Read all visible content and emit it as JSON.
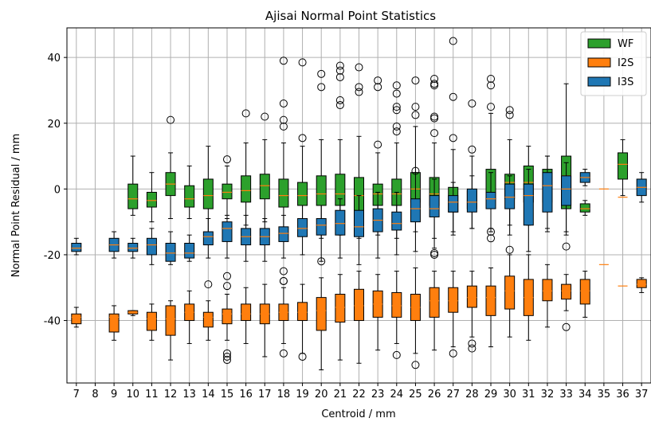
{
  "chart_data": {
    "type": "box",
    "title": "Ajisai Normal Point Statistics",
    "xlabel": "Centroid / mm",
    "ylabel": "Normal Point Residual / mm",
    "xlim": [
      6.5,
      37.5
    ],
    "ylim": [
      -59,
      49
    ],
    "xticks": [
      7,
      8,
      9,
      10,
      11,
      12,
      13,
      14,
      15,
      16,
      17,
      18,
      19,
      20,
      21,
      22,
      23,
      24,
      25,
      26,
      27,
      28,
      29,
      30,
      31,
      32,
      33,
      34,
      35,
      36,
      37
    ],
    "yticks": [
      40,
      20,
      0,
      -20,
      -40
    ],
    "grid": true,
    "legend": {
      "position": "top-right",
      "entries": [
        "WF",
        "I2S",
        "I3S"
      ]
    },
    "series": [
      {
        "name": "WF",
        "color": "#2ca02c",
        "boxes": [
          {
            "x": 10,
            "q1": -6,
            "median": -3,
            "q3": 1.5,
            "whislo": -8,
            "whishi": 10,
            "fliers": []
          },
          {
            "x": 11,
            "q1": -5.5,
            "median": -3.5,
            "q3": -1,
            "whislo": -10,
            "whishi": 5,
            "fliers": []
          },
          {
            "x": 12,
            "q1": -2,
            "median": 1.5,
            "q3": 5,
            "whislo": -9,
            "whishi": 11,
            "fliers": [
              21
            ]
          },
          {
            "x": 13,
            "q1": -5.5,
            "median": -3,
            "q3": 1,
            "whislo": -9,
            "whishi": 7,
            "fliers": []
          },
          {
            "x": 14,
            "q1": -6,
            "median": -2,
            "q3": 3,
            "whislo": -14,
            "whishi": 13,
            "fliers": []
          },
          {
            "x": 15,
            "q1": -3,
            "median": -1,
            "q3": 1.5,
            "whislo": -9,
            "whishi": 7,
            "fliers": [
              9
            ]
          },
          {
            "x": 16,
            "q1": -4,
            "median": -0.5,
            "q3": 4,
            "whislo": -11,
            "whishi": 14,
            "fliers": [
              23
            ]
          },
          {
            "x": 17,
            "q1": -3,
            "median": 1,
            "q3": 4.5,
            "whislo": -10,
            "whishi": 15,
            "fliers": [
              22
            ]
          },
          {
            "x": 18,
            "q1": -5.5,
            "median": -2,
            "q3": 3,
            "whislo": -12,
            "whishi": 14,
            "fliers": [
              39,
              26,
              21,
              19
            ]
          },
          {
            "x": 19,
            "q1": -5,
            "median": -2,
            "q3": 2,
            "whislo": -13,
            "whishi": 13,
            "fliers": [
              38.5,
              15.5
            ]
          },
          {
            "x": 20,
            "q1": -5,
            "median": -1.5,
            "q3": 4,
            "whislo": -15,
            "whishi": 15,
            "fliers": [
              35,
              31
            ]
          },
          {
            "x": 21,
            "q1": -5,
            "median": -1.5,
            "q3": 4.5,
            "whislo": -14,
            "whishi": 15,
            "fliers": [
              37.5,
              36,
              34,
              27,
              25.5
            ]
          },
          {
            "x": 22,
            "q1": -7,
            "median": -2,
            "q3": 3.5,
            "whislo": -15,
            "whishi": 16,
            "fliers": [
              37,
              31,
              29.5
            ]
          },
          {
            "x": 23,
            "q1": -5,
            "median": -1.5,
            "q3": 1.5,
            "whislo": -14,
            "whishi": 11,
            "fliers": [
              33,
              31,
              13.5
            ]
          },
          {
            "x": 24,
            "q1": -5,
            "median": -1.5,
            "q3": 3,
            "whislo": -15,
            "whishi": 14,
            "fliers": [
              31.5,
              29,
              25,
              24,
              19,
              17.5
            ]
          },
          {
            "x": 25,
            "q1": -4,
            "median": 0,
            "q3": 5,
            "whislo": -13,
            "whishi": 19,
            "fliers": [
              33,
              25,
              22.5,
              5.5
            ]
          },
          {
            "x": 26,
            "q1": -5,
            "median": -1.5,
            "q3": 3.5,
            "whislo": -15,
            "whishi": 14,
            "fliers": [
              33.5,
              32,
              31.5,
              22,
              21.5,
              17
            ]
          },
          {
            "x": 27,
            "q1": -7,
            "median": -3,
            "q3": 0.5,
            "whislo": -14,
            "whishi": 12,
            "fliers": [
              45,
              28,
              15.5
            ]
          },
          {
            "x": 28,
            "q1": -6,
            "median": -3,
            "q3": -0.5,
            "whislo": -12,
            "whishi": 10,
            "fliers": [
              26,
              12
            ]
          },
          {
            "x": 29,
            "q1": -5,
            "median": -2,
            "q3": 6,
            "whislo": -13,
            "whishi": 23,
            "fliers": [
              33.5,
              31.5,
              25
            ]
          },
          {
            "x": 30,
            "q1": -3,
            "median": 2,
            "q3": 4.5,
            "whislo": -11,
            "whishi": 15,
            "fliers": [
              24,
              22.5
            ]
          },
          {
            "x": 31,
            "q1": -4,
            "median": 2,
            "q3": 7,
            "whislo": -11,
            "whishi": 13,
            "fliers": []
          },
          {
            "x": 32,
            "q1": -4,
            "median": 2,
            "q3": 6,
            "whislo": -12,
            "whishi": 10,
            "fliers": []
          },
          {
            "x": 33,
            "q1": -6,
            "median": 4,
            "q3": 10,
            "whislo": -14,
            "whishi": 32,
            "fliers": []
          },
          {
            "x": 34,
            "q1": -7,
            "median": -6,
            "q3": -4.5,
            "whislo": -8,
            "whishi": -3.5,
            "fliers": []
          },
          {
            "x": 36,
            "q1": 3,
            "median": 7.5,
            "q3": 11,
            "whislo": -2,
            "whishi": 15,
            "fliers": []
          }
        ]
      },
      {
        "name": "I2S",
        "color": "#ff7f0e",
        "boxes": [
          {
            "x": 7,
            "q1": -41,
            "median": -39,
            "q3": -38,
            "whislo": -42,
            "whishi": -36,
            "fliers": []
          },
          {
            "x": 9,
            "q1": -43.5,
            "median": -39,
            "q3": -38,
            "whislo": -46,
            "whishi": -35.5,
            "fliers": []
          },
          {
            "x": 10,
            "q1": -38,
            "median": -37.5,
            "q3": -37,
            "whislo": -38.5,
            "whishi": -37,
            "fliers": []
          },
          {
            "x": 11,
            "q1": -43,
            "median": -39.5,
            "q3": -37.5,
            "whislo": -46,
            "whishi": -35,
            "fliers": []
          },
          {
            "x": 12,
            "q1": -44.5,
            "median": -39.5,
            "q3": -35.5,
            "whislo": -52,
            "whishi": -34,
            "fliers": []
          },
          {
            "x": 13,
            "q1": -40,
            "median": -37.5,
            "q3": -35,
            "whislo": -47,
            "whishi": -31,
            "fliers": []
          },
          {
            "x": 14,
            "q1": -42,
            "median": -39,
            "q3": -37.5,
            "whislo": -46,
            "whishi": -34,
            "fliers": [
              -29
            ]
          },
          {
            "x": 15,
            "q1": -41,
            "median": -38,
            "q3": -36.5,
            "whislo": -46,
            "whishi": -32,
            "fliers": [
              -26.5,
              -29.5,
              -50,
              -51,
              -52
            ]
          },
          {
            "x": 16,
            "q1": -40,
            "median": -38,
            "q3": -35,
            "whislo": -47,
            "whishi": -30,
            "fliers": []
          },
          {
            "x": 17,
            "q1": -41,
            "median": -38,
            "q3": -35,
            "whislo": -51,
            "whishi": -29,
            "fliers": []
          },
          {
            "x": 18,
            "q1": -40,
            "median": -37.5,
            "q3": -35,
            "whislo": -47,
            "whishi": -30,
            "fliers": [
              -25,
              -28,
              -28,
              -50
            ]
          },
          {
            "x": 19,
            "q1": -40,
            "median": -37.5,
            "q3": -34.5,
            "whislo": -50,
            "whishi": -29,
            "fliers": [
              -51
            ]
          },
          {
            "x": 20,
            "q1": -43,
            "median": -37,
            "q3": -33,
            "whislo": -55,
            "whishi": -27,
            "fliers": []
          },
          {
            "x": 21,
            "q1": -40.5,
            "median": -36,
            "q3": -32,
            "whislo": -52,
            "whishi": -26,
            "fliers": []
          },
          {
            "x": 22,
            "q1": -40,
            "median": -35.5,
            "q3": -30.5,
            "whislo": -53,
            "whishi": -25,
            "fliers": []
          },
          {
            "x": 23,
            "q1": -39,
            "median": -35,
            "q3": -31,
            "whislo": -49,
            "whishi": -26,
            "fliers": []
          },
          {
            "x": 24,
            "q1": -39,
            "median": -35.5,
            "q3": -31.5,
            "whislo": -47,
            "whishi": -25,
            "fliers": [
              -50.5
            ]
          },
          {
            "x": 25,
            "q1": -40,
            "median": -36,
            "q3": -32,
            "whislo": -50,
            "whishi": -24,
            "fliers": [
              -53.5
            ]
          },
          {
            "x": 26,
            "q1": -39,
            "median": -34,
            "q3": -30,
            "whislo": -49,
            "whishi": -25,
            "fliers": []
          },
          {
            "x": 27,
            "q1": -37.5,
            "median": -34,
            "q3": -30,
            "whislo": -48,
            "whishi": -25,
            "fliers": [
              -50
            ]
          },
          {
            "x": 28,
            "q1": -36,
            "median": -33,
            "q3": -29.5,
            "whislo": -45,
            "whishi": -25,
            "fliers": [
              -47,
              -48.5
            ]
          },
          {
            "x": 29,
            "q1": -38.5,
            "median": -33,
            "q3": -29.5,
            "whislo": -48,
            "whishi": -24,
            "fliers": []
          },
          {
            "x": 30,
            "q1": -36.5,
            "median": -31,
            "q3": -26.5,
            "whislo": -45,
            "whishi": -20,
            "fliers": []
          },
          {
            "x": 31,
            "q1": -38.5,
            "median": -33,
            "q3": -27.5,
            "whislo": -46,
            "whishi": -20,
            "fliers": []
          },
          {
            "x": 32,
            "q1": -34,
            "median": -31,
            "q3": -27.5,
            "whislo": -42,
            "whishi": -23,
            "fliers": []
          },
          {
            "x": 33,
            "q1": -33.5,
            "median": -31,
            "q3": -29,
            "whislo": -37,
            "whishi": -26,
            "fliers": [
              -42
            ]
          },
          {
            "x": 34,
            "q1": -35,
            "median": -31,
            "q3": -27.5,
            "whislo": -39,
            "whishi": -25,
            "fliers": []
          },
          {
            "x": 35,
            "q1": -23,
            "median": -23,
            "q3": -23,
            "whislo": -23,
            "whishi": -23,
            "fliers": []
          },
          {
            "x": 36,
            "q1": -29.5,
            "median": -29.5,
            "q3": -29.5,
            "whislo": -29.5,
            "whishi": -29.5,
            "fliers": []
          },
          {
            "x": 37,
            "q1": -30,
            "median": -29,
            "q3": -27.5,
            "whislo": -31.5,
            "whishi": -27,
            "fliers": []
          }
        ]
      },
      {
        "name": "I3S",
        "color": "#1f77b4",
        "boxes": [
          {
            "x": 7,
            "q1": -19,
            "median": -18,
            "q3": -16.5,
            "whislo": -20,
            "whishi": -15,
            "fliers": []
          },
          {
            "x": 9,
            "q1": -19,
            "median": -17,
            "q3": -15,
            "whislo": -21,
            "whishi": -13,
            "fliers": []
          },
          {
            "x": 10,
            "q1": -19,
            "median": -18,
            "q3": -16.5,
            "whislo": -21,
            "whishi": -15,
            "fliers": []
          },
          {
            "x": 11,
            "q1": -20,
            "median": -17,
            "q3": -15,
            "whislo": -23,
            "whishi": -12,
            "fliers": []
          },
          {
            "x": 12,
            "q1": -22,
            "median": -19.5,
            "q3": -16.5,
            "whislo": -23,
            "whishi": -13,
            "fliers": []
          },
          {
            "x": 13,
            "q1": -21,
            "median": -19.5,
            "q3": -16.5,
            "whislo": -22,
            "whishi": -14,
            "fliers": []
          },
          {
            "x": 14,
            "q1": -17,
            "median": -14.5,
            "q3": -13,
            "whislo": -21,
            "whishi": -9,
            "fliers": []
          },
          {
            "x": 15,
            "q1": -16,
            "median": -12,
            "q3": -10,
            "whislo": -21,
            "whishi": -8,
            "fliers": []
          },
          {
            "x": 16,
            "q1": -17,
            "median": -14.5,
            "q3": -12,
            "whislo": -22,
            "whishi": -8,
            "fliers": []
          },
          {
            "x": 17,
            "q1": -17,
            "median": -14.5,
            "q3": -12,
            "whislo": -22,
            "whishi": -9,
            "fliers": []
          },
          {
            "x": 18,
            "q1": -16,
            "median": -13.5,
            "q3": -11.5,
            "whislo": -21,
            "whishi": -8,
            "fliers": []
          },
          {
            "x": 19,
            "q1": -14.5,
            "median": -12,
            "q3": -9,
            "whislo": -20,
            "whishi": -5,
            "fliers": []
          },
          {
            "x": 20,
            "q1": -14,
            "median": -11,
            "q3": -9,
            "whislo": -22,
            "whishi": -5,
            "fliers": [
              -22
            ]
          },
          {
            "x": 21,
            "q1": -14,
            "median": -10.5,
            "q3": -6.5,
            "whislo": -21,
            "whishi": -3,
            "fliers": []
          },
          {
            "x": 22,
            "q1": -14.5,
            "median": -11.5,
            "q3": -6.5,
            "whislo": -23,
            "whishi": -2,
            "fliers": []
          },
          {
            "x": 23,
            "q1": -13,
            "median": -9.5,
            "q3": -6,
            "whislo": -21,
            "whishi": -1,
            "fliers": []
          },
          {
            "x": 24,
            "q1": -12.5,
            "median": -10.5,
            "q3": -7,
            "whislo": -20,
            "whishi": -1,
            "fliers": []
          },
          {
            "x": 25,
            "q1": -10,
            "median": -6,
            "q3": -3,
            "whislo": -19,
            "whishi": 5,
            "fliers": []
          },
          {
            "x": 26,
            "q1": -8.5,
            "median": -6,
            "q3": -2,
            "whislo": -18,
            "whishi": 3,
            "fliers": [
              -19.5,
              -20
            ]
          },
          {
            "x": 27,
            "q1": -7,
            "median": -4,
            "q3": -2,
            "whislo": -13,
            "whishi": 2,
            "fliers": []
          },
          {
            "x": 28,
            "q1": -7,
            "median": -4,
            "q3": 0,
            "whislo": -12,
            "whishi": 4,
            "fliers": []
          },
          {
            "x": 29,
            "q1": -6,
            "median": -3,
            "q3": -1,
            "whislo": -12,
            "whishi": 5,
            "fliers": [
              -15,
              -13
            ]
          },
          {
            "x": 30,
            "q1": -6,
            "median": -2.5,
            "q3": 1.5,
            "whislo": -14,
            "whishi": 4,
            "fliers": [
              -18.5
            ]
          },
          {
            "x": 31,
            "q1": -11,
            "median": -2,
            "q3": 1.5,
            "whislo": -19,
            "whishi": 6,
            "fliers": []
          },
          {
            "x": 32,
            "q1": -7,
            "median": 1,
            "q3": 5,
            "whislo": -13,
            "whishi": 10,
            "fliers": []
          },
          {
            "x": 33,
            "q1": -5,
            "median": 0,
            "q3": 4,
            "whislo": -13,
            "whishi": 8,
            "fliers": [
              -17.5
            ]
          },
          {
            "x": 34,
            "q1": 2,
            "median": 3.5,
            "q3": 5,
            "whislo": 1,
            "whishi": 6,
            "fliers": []
          },
          {
            "x": 35,
            "q1": 0,
            "median": 0,
            "q3": 0,
            "whislo": 0,
            "whishi": 0,
            "fliers": []
          },
          {
            "x": 36,
            "q1": -2.5,
            "median": -2.5,
            "q3": -2.5,
            "whislo": -2.5,
            "whishi": -2.5,
            "fliers": []
          },
          {
            "x": 37,
            "q1": -2,
            "median": 0.5,
            "q3": 3,
            "whislo": -4,
            "whishi": 5,
            "fliers": []
          }
        ]
      }
    ]
  }
}
